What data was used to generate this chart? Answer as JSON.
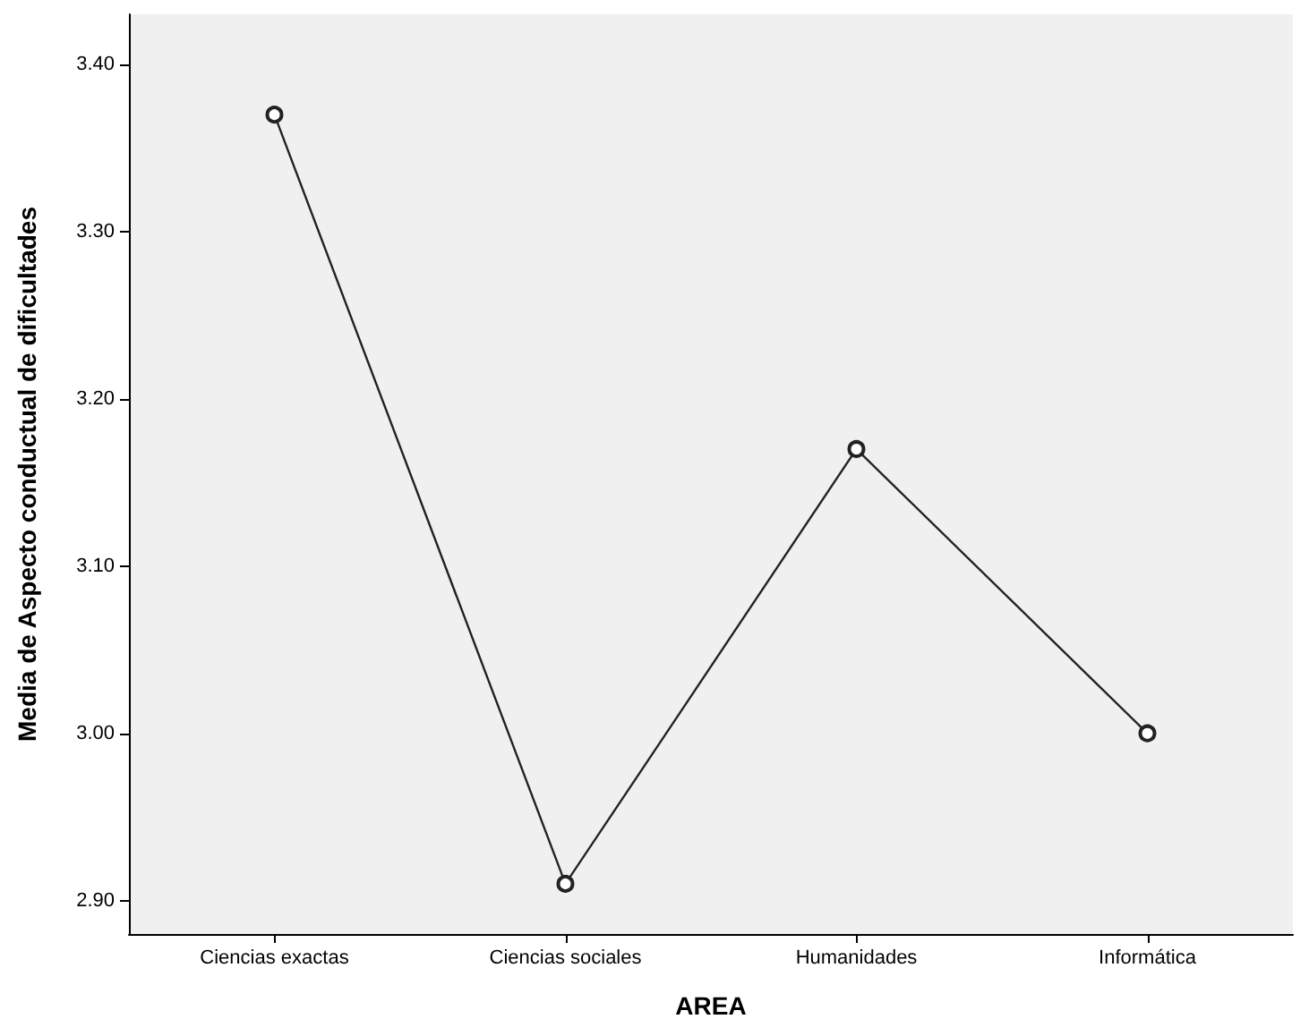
{
  "chart_data": {
    "type": "line",
    "xlabel": "AREA",
    "ylabel": "Media de Aspecto conductual de dificultades",
    "categories": [
      "Ciencias exactas",
      "Ciencias sociales",
      "Humanidades",
      "Informática"
    ],
    "series": [
      {
        "color": "#222222",
        "values": [
          3.37,
          2.91,
          3.17,
          3.0
        ]
      }
    ],
    "ylim": [
      2.88,
      3.43
    ],
    "yticks": [
      {
        "value": 2.9,
        "label": "2.90"
      },
      {
        "value": 3.0,
        "label": "3.00"
      },
      {
        "value": 3.1,
        "label": "3.10"
      },
      {
        "value": 3.2,
        "label": "3.20"
      },
      {
        "value": 3.3,
        "label": "3.30"
      },
      {
        "value": 3.4,
        "label": "3.40"
      }
    ],
    "grid": false,
    "marker": "circle",
    "line_style": "solid"
  }
}
